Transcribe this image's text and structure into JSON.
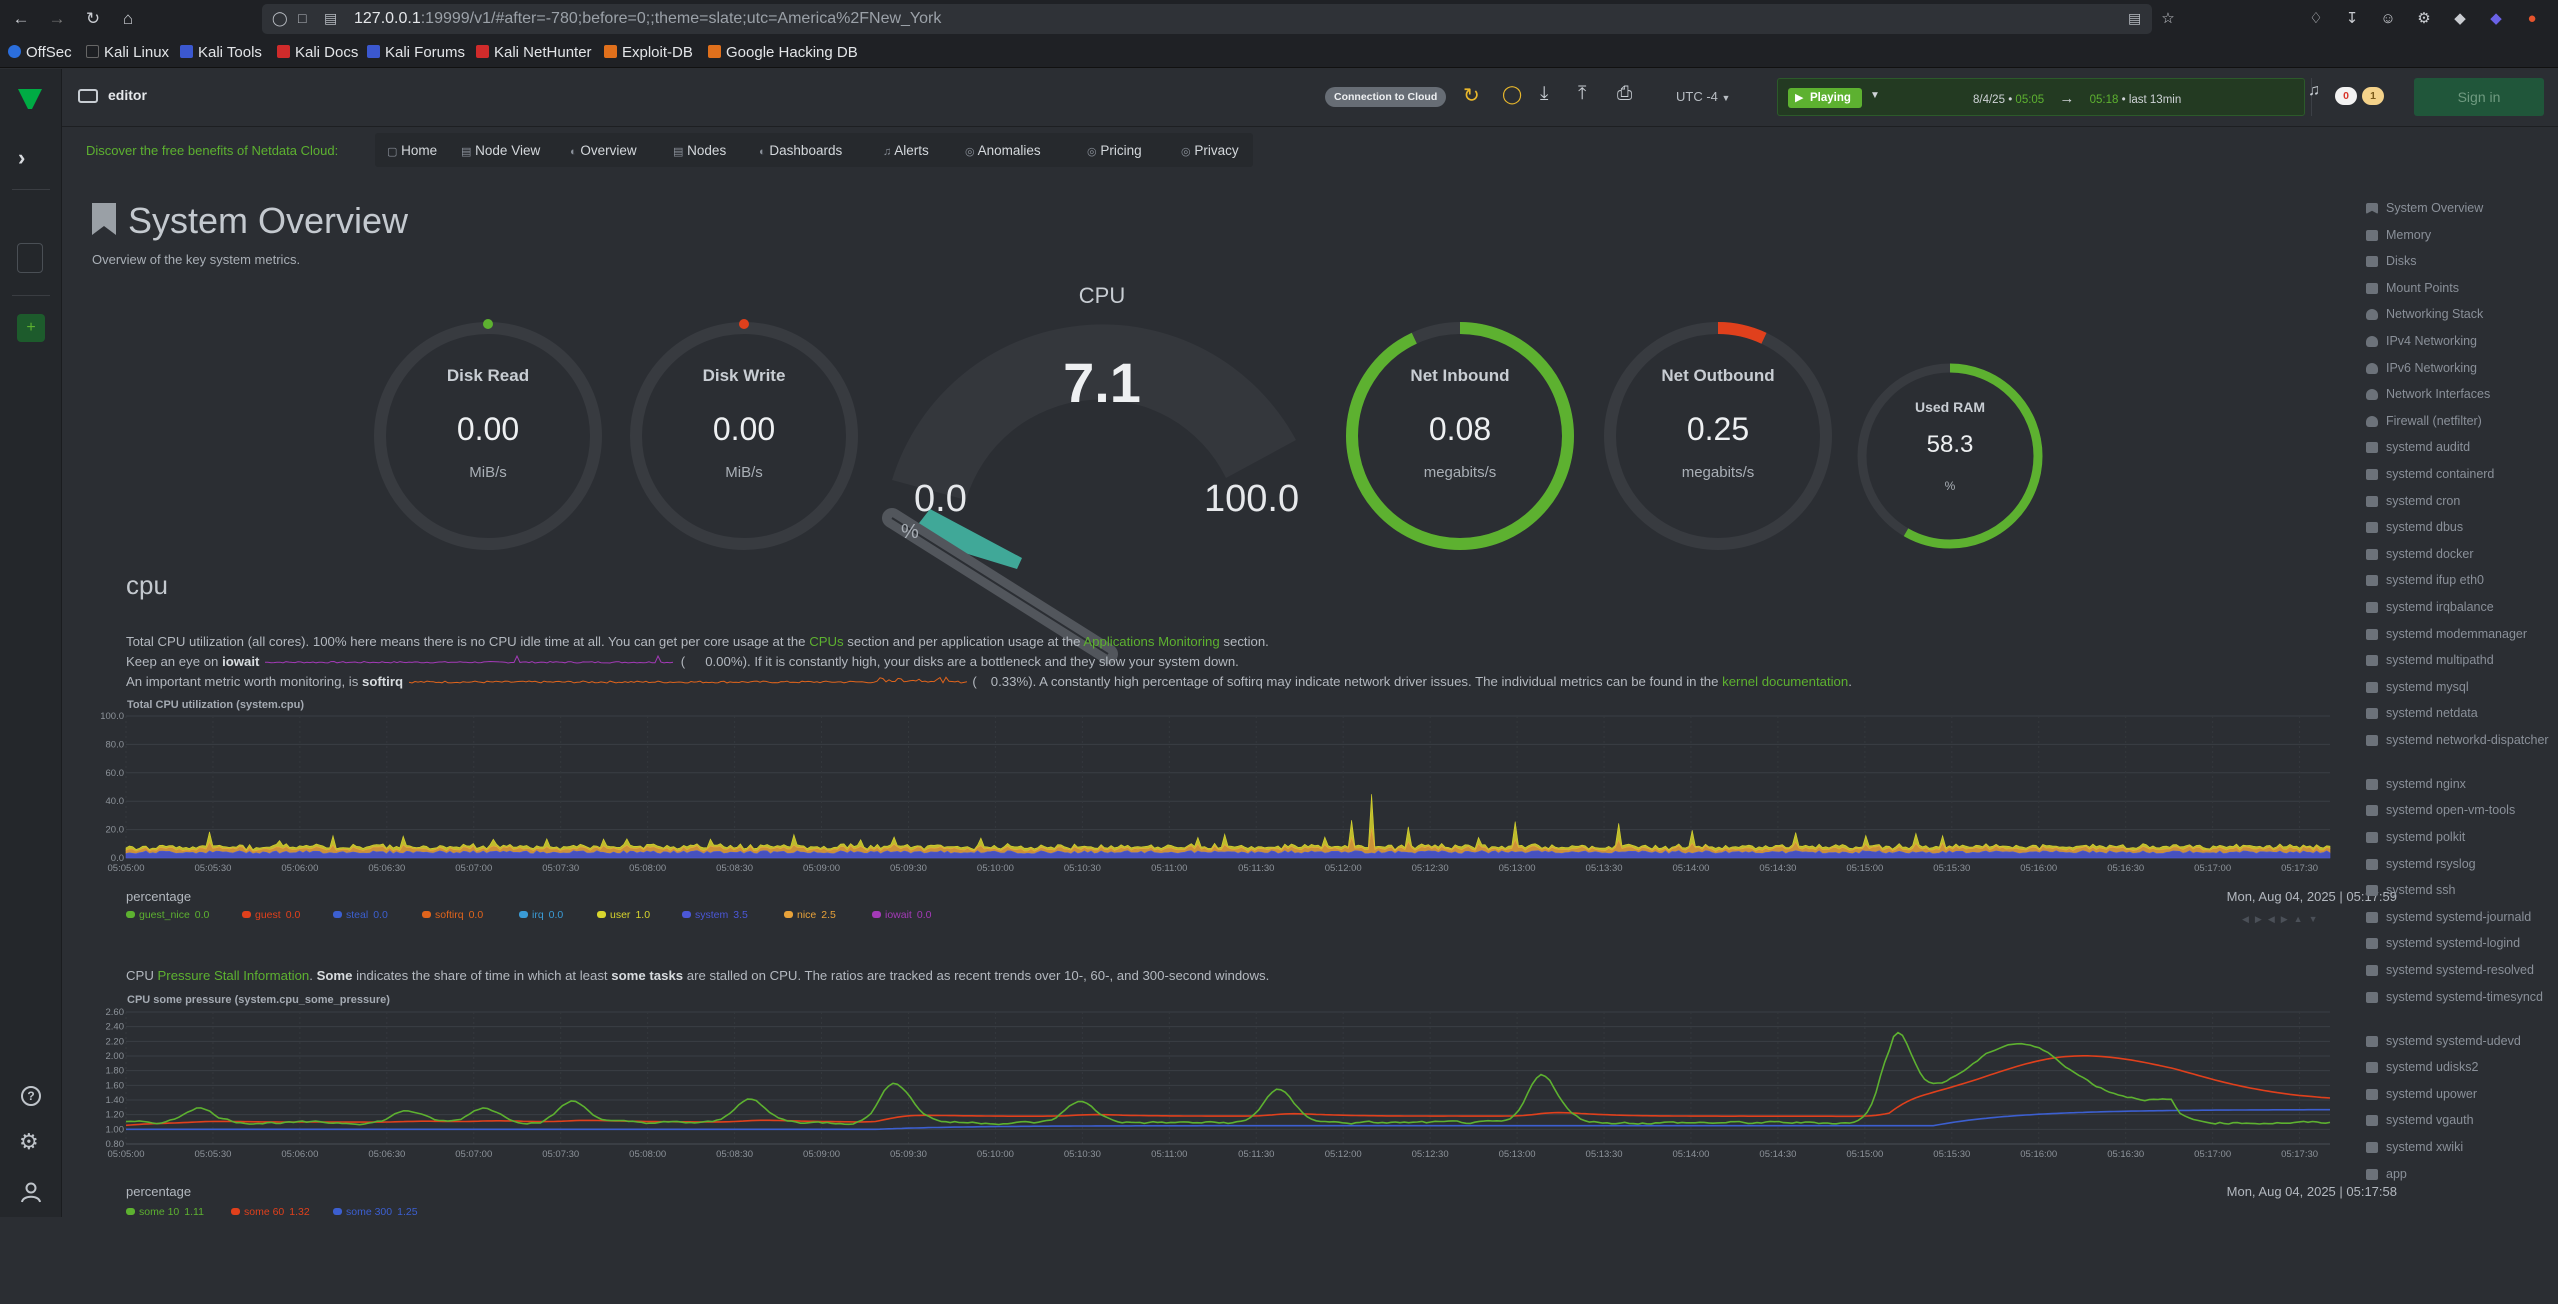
{
  "browser": {
    "url_host": "127.0.0.1",
    "url_rest": ":19999/v1/#after=-780;before=0;;theme=slate;utc=America%2FNew_York",
    "bookmarks": [
      "OffSec",
      "Kali Linux",
      "Kali Tools",
      "Kali Docs",
      "Kali Forums",
      "Kali NetHunter",
      "Exploit-DB",
      "Google Hacking DB"
    ]
  },
  "topbar": {
    "space_name": "editor",
    "connection_badge": "Connection to Cloud",
    "timezone": "UTC -4",
    "playing_label": "Playing",
    "time_start_date": "8/4/25",
    "time_start_sep": "•",
    "time_start": "05:05",
    "time_arrow": "→",
    "time_end": "05:18",
    "time_window": "• last 13min",
    "alerts_critical": "0",
    "alerts_warning": "1",
    "signin": "Sign in"
  },
  "promo": {
    "text": "Discover the free benefits of Netdata Cloud:",
    "tabs": [
      "Home",
      "Node View",
      "Overview",
      "Nodes",
      "Dashboards",
      "Alerts",
      "Anomalies",
      "Pricing",
      "Privacy"
    ]
  },
  "overview": {
    "title": "System Overview",
    "subtitle": "Overview of the key system metrics."
  },
  "gauges": {
    "disk_read": {
      "label": "Disk Read",
      "value": "0.00",
      "unit": "MiB/s"
    },
    "disk_write": {
      "label": "Disk Write",
      "value": "0.00",
      "unit": "MiB/s"
    },
    "cpu": {
      "label": "CPU",
      "value": "7.1",
      "min": "0.0",
      "max": "100.0",
      "unit": "%",
      "level": 0.071
    },
    "net_in": {
      "label": "Net Inbound",
      "value": "0.08",
      "unit": "megabits/s",
      "level": 0.93
    },
    "net_out": {
      "label": "Net Outbound",
      "value": "0.25",
      "unit": "megabits/s",
      "level": 0.07
    },
    "ram": {
      "label": "Used RAM",
      "value": "58.3",
      "unit": "%",
      "level": 0.583
    }
  },
  "cpu_section": {
    "heading": "cpu",
    "line1_a": "Total CPU utilization (all cores). 100% here means there is no CPU idle time at all. You can get per core usage at the ",
    "line1_link1": "CPUs",
    "line1_b": " section and per application usage at the ",
    "line1_link2": "Applications Monitoring",
    "line1_c": " section.",
    "line2_a": "Keep an eye on ",
    "line2_b": "iowait",
    "line2_val": "0.00%",
    "line2_c": "). If it is constantly high, your disks are a bottleneck and they slow your system down.",
    "line3_a": "An important metric worth monitoring, is ",
    "line3_b": "softirq",
    "line3_val": "0.33%",
    "line3_c": "). A constantly high percentage of softirq may indicate network driver issues. The individual metrics can be found in the ",
    "line3_link": "kernel documentation",
    "line3_d": ".",
    "paren": "("
  },
  "cpu_chart": {
    "title": "Total CPU utilization (system.cpu)",
    "units": "percentage",
    "timestamp": "Mon, Aug 04, 2025 | 05:17:59",
    "y_ticks": [
      "100.0",
      "80.0",
      "60.0",
      "40.0",
      "20.0",
      "0.0"
    ],
    "x_ticks": [
      "05:05:00",
      "05:05:30",
      "05:06:00",
      "05:06:30",
      "05:07:00",
      "05:07:30",
      "05:08:00",
      "05:08:30",
      "05:09:00",
      "05:09:30",
      "05:10:00",
      "05:10:30",
      "05:11:00",
      "05:11:30",
      "05:12:00",
      "05:12:30",
      "05:13:00",
      "05:13:30",
      "05:14:00",
      "05:14:30",
      "05:15:00",
      "05:15:30",
      "05:16:00",
      "05:16:30",
      "05:17:00",
      "05:17:30"
    ],
    "legend": [
      {
        "name": "guest_nice",
        "value": "0.0",
        "color": "#5db130"
      },
      {
        "name": "guest",
        "value": "0.0",
        "color": "#e0401c"
      },
      {
        "name": "steal",
        "value": "0.0",
        "color": "#3c5fd0"
      },
      {
        "name": "softirq",
        "value": "0.0",
        "color": "#e0641c"
      },
      {
        "name": "irq",
        "value": "0.0",
        "color": "#3a9bd6"
      },
      {
        "name": "user",
        "value": "1.0",
        "color": "#d8d52e"
      },
      {
        "name": "system",
        "value": "3.5",
        "color": "#4b57d8"
      },
      {
        "name": "nice",
        "value": "2.5",
        "color": "#e8a23a"
      },
      {
        "name": "iowait",
        "value": "0.0",
        "color": "#a43ab8"
      }
    ]
  },
  "psi_section": {
    "a": "CPU ",
    "link": "Pressure Stall Information",
    "b": ". ",
    "some": "Some",
    "c": " indicates the share of time in which at least ",
    "tasks": "some tasks",
    "d": " are stalled on CPU. The ratios are tracked as recent trends over 10-, 60-, and 300-second windows."
  },
  "psi_chart": {
    "title": "CPU some pressure (system.cpu_some_pressure)",
    "units": "percentage",
    "timestamp": "Mon, Aug 04, 2025 | 05:17:58",
    "y_ticks": [
      "2.60",
      "2.40",
      "2.20",
      "2.00",
      "1.80",
      "1.60",
      "1.40",
      "1.20",
      "1.00",
      "0.80"
    ],
    "x_ticks": [
      "05:05:00",
      "05:05:30",
      "05:06:00",
      "05:06:30",
      "05:07:00",
      "05:07:30",
      "05:08:00",
      "05:08:30",
      "05:09:00",
      "05:09:30",
      "05:10:00",
      "05:10:30",
      "05:11:00",
      "05:11:30",
      "05:12:00",
      "05:12:30",
      "05:13:00",
      "05:13:30",
      "05:14:00",
      "05:14:30",
      "05:15:00",
      "05:15:30",
      "05:16:00",
      "05:16:30",
      "05:17:00",
      "05:17:30"
    ],
    "legend": [
      {
        "name": "some 10",
        "value": "1.11",
        "color": "#5db130"
      },
      {
        "name": "some 60",
        "value": "1.32",
        "color": "#e0401c"
      },
      {
        "name": "some 300",
        "value": "1.25",
        "color": "#3c5fd0"
      }
    ]
  },
  "sidebar": {
    "items": [
      "System Overview",
      "Memory",
      "Disks",
      "Mount Points",
      "Networking Stack",
      "IPv4 Networking",
      "IPv6 Networking",
      "Network Interfaces",
      "Firewall (netfilter)",
      "systemd auditd",
      "systemd containerd",
      "systemd cron",
      "systemd dbus",
      "systemd docker",
      "systemd ifup eth0",
      "systemd irqbalance",
      "systemd modemmanager",
      "systemd multipathd",
      "systemd mysql",
      "systemd netdata",
      "systemd networkd-dispatcher",
      "systemd nginx",
      "systemd open-vm-tools",
      "systemd polkit",
      "systemd rsyslog",
      "systemd ssh",
      "systemd systemd-journald",
      "systemd systemd-logind",
      "systemd systemd-resolved",
      "systemd systemd-timesyncd",
      "systemd systemd-udevd",
      "systemd udisks2",
      "systemd upower",
      "systemd vgauth",
      "systemd xwiki",
      "app"
    ]
  },
  "colors": {
    "accent": "#5db130",
    "bg": "#2b2e33",
    "warn": "#e0401c"
  }
}
